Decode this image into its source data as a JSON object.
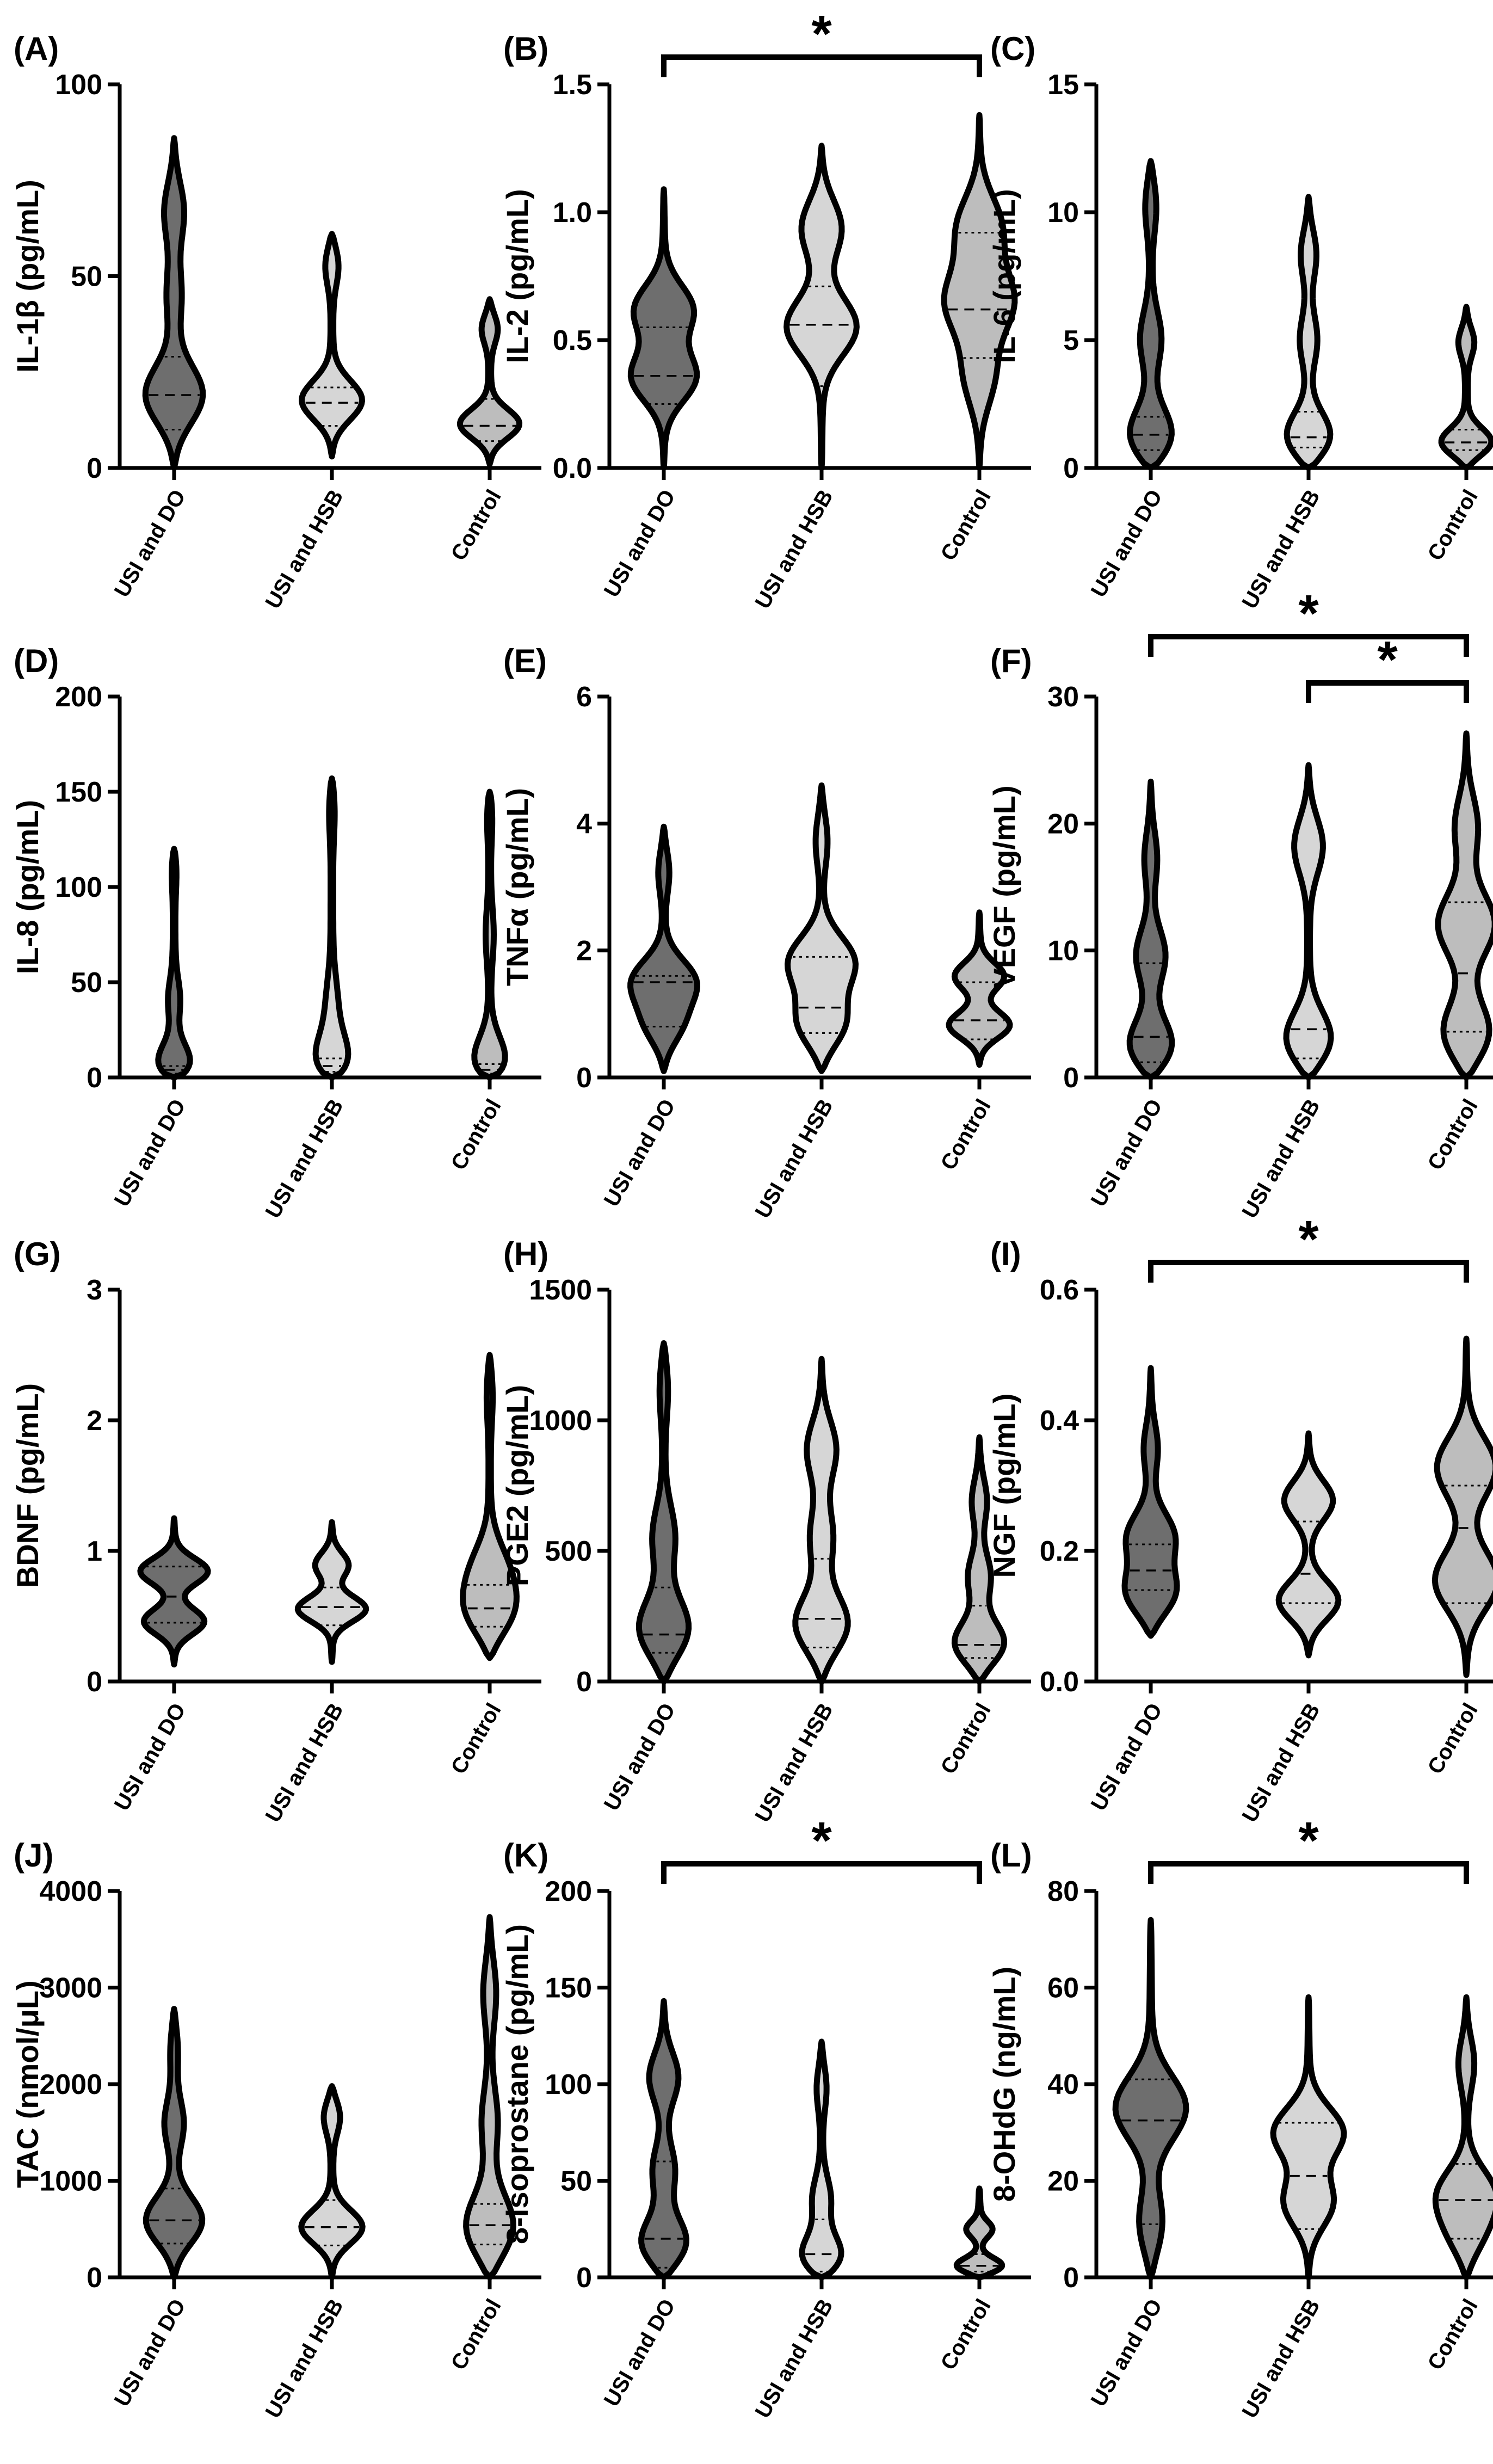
{
  "colors": {
    "USI and DO": "#6e6e6e",
    "USI and HSB": "#d6d6d6",
    "Control": "#bdbdbd"
  },
  "chart_data": [
    {
      "type": "violin",
      "panel": "(A)",
      "ylabel": "IL-1β (pg/mL)",
      "ylim": [
        0,
        100
      ],
      "yticks": [
        0,
        50,
        100
      ],
      "categories": [
        "USI and DO",
        "USI and HSB",
        "Control"
      ],
      "series": [
        {
          "name": "USI and DO",
          "min": 0,
          "max": 86,
          "q1": 10,
          "median": 19,
          "q3": 29,
          "modes": [
            [
              18,
              1.0
            ],
            [
              68,
              0.32
            ],
            [
              45,
              0.18
            ]
          ]
        },
        {
          "name": "USI and HSB",
          "min": 3,
          "max": 61,
          "q1": 11,
          "median": 17,
          "q3": 21,
          "modes": [
            [
              17,
              1.0
            ],
            [
              54,
              0.25
            ]
          ]
        },
        {
          "name": "Control",
          "min": 1,
          "max": 44,
          "q1": 7,
          "median": 11,
          "q3": 18,
          "modes": [
            [
              11,
              1.0
            ],
            [
              37,
              0.28
            ]
          ]
        }
      ],
      "significance": []
    },
    {
      "type": "violin",
      "panel": "(B)",
      "ylabel": "IL-2 (pg/mL)",
      "ylim": [
        0,
        1.5
      ],
      "yticks": [
        0.0,
        0.5,
        1.0,
        1.5
      ],
      "categories": [
        "USI and DO",
        "USI and HSB",
        "Control"
      ],
      "series": [
        {
          "name": "USI and DO",
          "min": 0,
          "max": 1.09,
          "q1": 0.25,
          "median": 0.36,
          "q3": 0.55,
          "modes": [
            [
              0.35,
              1.0
            ],
            [
              0.62,
              0.85
            ]
          ]
        },
        {
          "name": "USI and HSB",
          "min": 0,
          "max": 1.26,
          "q1": 0.32,
          "median": 0.56,
          "q3": 0.71,
          "modes": [
            [
              0.55,
              1.0
            ],
            [
              0.95,
              0.65
            ]
          ]
        },
        {
          "name": "Control",
          "min": 0,
          "max": 1.38,
          "q1": 0.43,
          "median": 0.62,
          "q3": 0.92,
          "modes": [
            [
              0.65,
              1.0
            ],
            [
              0.95,
              0.7
            ],
            [
              0.35,
              0.5
            ]
          ]
        }
      ],
      "significance": [
        {
          "from": "USI and DO",
          "to": "Control",
          "label": "*"
        }
      ]
    },
    {
      "type": "violin",
      "panel": "(C)",
      "ylabel": "IL-6 (pg/mL)",
      "ylim": [
        0,
        15
      ],
      "yticks": [
        0,
        5,
        10,
        15
      ],
      "categories": [
        "USI and DO",
        "USI and HSB",
        "Control"
      ],
      "series": [
        {
          "name": "USI and DO",
          "min": 0,
          "max": 12,
          "q1": 0.7,
          "median": 1.3,
          "q3": 2.0,
          "modes": [
            [
              1.0,
              1.0
            ],
            [
              5.0,
              0.28
            ],
            [
              10.5,
              0.2
            ]
          ]
        },
        {
          "name": "USI and HSB",
          "min": 0,
          "max": 10.6,
          "q1": 0.8,
          "median": 1.2,
          "q3": 2.2,
          "modes": [
            [
              1.0,
              1.0
            ],
            [
              5.0,
              0.22
            ],
            [
              8.5,
              0.25
            ]
          ]
        },
        {
          "name": "Control",
          "min": 0,
          "max": 6.3,
          "q1": 0.7,
          "median": 1.0,
          "q3": 1.5,
          "modes": [
            [
              0.9,
              1.0
            ],
            [
              5.0,
              0.25
            ]
          ]
        }
      ],
      "significance": []
    },
    {
      "type": "violin",
      "panel": "(D)",
      "ylabel": "IL-8 (pg/mL)",
      "ylim": [
        0,
        200
      ],
      "yticks": [
        0,
        50,
        100,
        150,
        200
      ],
      "categories": [
        "USI and DO",
        "USI and HSB",
        "Control"
      ],
      "series": [
        {
          "name": "USI and DO",
          "min": 0,
          "max": 120,
          "q1": 2,
          "median": 4,
          "q3": 6,
          "modes": [
            [
              3,
              1.0
            ],
            [
              40,
              0.15
            ],
            [
              112,
              0.08
            ]
          ]
        },
        {
          "name": "USI and HSB",
          "min": 0,
          "max": 157,
          "q1": 3,
          "median": 6,
          "q3": 10,
          "modes": [
            [
              4,
              1.0
            ],
            [
              38,
              0.15
            ],
            [
              145,
              0.1
            ]
          ]
        },
        {
          "name": "Control",
          "min": 0,
          "max": 150,
          "q1": 2,
          "median": 4,
          "q3": 7,
          "modes": [
            [
              3,
              1.0
            ],
            [
              75,
              0.08
            ],
            [
              142,
              0.1
            ]
          ]
        }
      ],
      "significance": []
    },
    {
      "type": "violin",
      "panel": "(E)",
      "ylabel": "TNFα (pg/mL)",
      "ylim": [
        0,
        6
      ],
      "yticks": [
        0,
        2,
        4,
        6
      ],
      "categories": [
        "USI and DO",
        "USI and HSB",
        "Control"
      ],
      "series": [
        {
          "name": "USI and DO",
          "min": 0.1,
          "max": 3.95,
          "q1": 0.8,
          "median": 1.5,
          "q3": 1.6,
          "modes": [
            [
              1.5,
              1.0
            ],
            [
              0.8,
              0.7
            ],
            [
              3.3,
              0.2
            ]
          ]
        },
        {
          "name": "USI and HSB",
          "min": 0.1,
          "max": 4.6,
          "q1": 0.7,
          "median": 1.1,
          "q3": 1.9,
          "modes": [
            [
              1.8,
              1.0
            ],
            [
              0.8,
              0.95
            ],
            [
              3.8,
              0.2
            ]
          ]
        },
        {
          "name": "Control",
          "min": 0.2,
          "max": 2.6,
          "q1": 0.6,
          "median": 0.9,
          "q3": 1.5,
          "modes": [
            [
              0.8,
              1.0
            ],
            [
              1.6,
              0.7
            ]
          ]
        }
      ],
      "significance": []
    },
    {
      "type": "violin",
      "panel": "(F)",
      "ylabel": "VEGF (pg/mL)",
      "ylim": [
        0,
        30
      ],
      "yticks": [
        0,
        10,
        20,
        30
      ],
      "categories": [
        "USI and DO",
        "USI and HSB",
        "Control"
      ],
      "series": [
        {
          "name": "USI and DO",
          "min": 0,
          "max": 23.3,
          "q1": 1.2,
          "median": 3.2,
          "q3": 9.0,
          "modes": [
            [
              2.0,
              1.0
            ],
            [
              9.5,
              0.4
            ],
            [
              17.5,
              0.18
            ]
          ]
        },
        {
          "name": "USI and HSB",
          "min": 0,
          "max": 24.6,
          "q1": 1.5,
          "median": 3.8,
          "q3": 8.7,
          "modes": [
            [
              2.5,
              1.0
            ],
            [
              18.5,
              0.45
            ]
          ]
        },
        {
          "name": "Control",
          "min": 0,
          "max": 27.1,
          "q1": 3.6,
          "median": 8.2,
          "q3": 13.8,
          "modes": [
            [
              3.0,
              1.0
            ],
            [
              12.0,
              0.8
            ],
            [
              20.0,
              0.35
            ]
          ]
        }
      ],
      "significance": [
        {
          "from": "USI and DO",
          "to": "Control",
          "label": "*"
        },
        {
          "from": "USI and HSB",
          "to": "Control",
          "label": "*"
        }
      ]
    },
    {
      "type": "violin",
      "panel": "(G)",
      "ylabel": "BDNF (pg/mL)",
      "ylim": [
        0,
        3
      ],
      "yticks": [
        0,
        1,
        2,
        3
      ],
      "categories": [
        "USI and DO",
        "USI and HSB",
        "Control"
      ],
      "series": [
        {
          "name": "USI and DO",
          "min": 0.13,
          "max": 1.25,
          "q1": 0.45,
          "median": 0.65,
          "q3": 0.88,
          "modes": [
            [
              0.85,
              1.0
            ],
            [
              0.45,
              0.95
            ]
          ]
        },
        {
          "name": "USI and HSB",
          "min": 0.15,
          "max": 1.22,
          "q1": 0.43,
          "median": 0.57,
          "q3": 0.72,
          "modes": [
            [
              0.55,
              1.0
            ],
            [
              0.9,
              0.5
            ]
          ]
        },
        {
          "name": "Control",
          "min": 0.18,
          "max": 2.5,
          "q1": 0.42,
          "median": 0.56,
          "q3": 0.74,
          "modes": [
            [
              0.5,
              1.0
            ],
            [
              0.85,
              0.55
            ],
            [
              2.25,
              0.12
            ]
          ]
        }
      ],
      "significance": []
    },
    {
      "type": "violin",
      "panel": "(H)",
      "ylabel": "PGE2 (pg/mL)",
      "ylim": [
        0,
        1500
      ],
      "yticks": [
        0,
        500,
        1000,
        1500
      ],
      "categories": [
        "USI and DO",
        "USI and HSB",
        "Control"
      ],
      "series": [
        {
          "name": "USI and DO",
          "min": 0,
          "max": 1295,
          "q1": 110,
          "median": 180,
          "q3": 360,
          "modes": [
            [
              180,
              1.0
            ],
            [
              550,
              0.3
            ],
            [
              1150,
              0.15
            ]
          ]
        },
        {
          "name": "USI and HSB",
          "min": 0,
          "max": 1235,
          "q1": 130,
          "median": 240,
          "q3": 470,
          "modes": [
            [
              200,
              1.0
            ],
            [
              900,
              0.45
            ],
            [
              550,
              0.3
            ]
          ]
        },
        {
          "name": "Control",
          "min": 0,
          "max": 935,
          "q1": 90,
          "median": 140,
          "q3": 290,
          "modes": [
            [
              130,
              1.0
            ],
            [
              400,
              0.3
            ],
            [
              700,
              0.22
            ]
          ]
        }
      ],
      "significance": []
    },
    {
      "type": "violin",
      "panel": "(I)",
      "ylabel": "NGF (pg/mL)",
      "ylim": [
        0,
        0.6
      ],
      "yticks": [
        0.0,
        0.2,
        0.4,
        0.6
      ],
      "categories": [
        "USI and DO",
        "USI and HSB",
        "Control"
      ],
      "series": [
        {
          "name": "USI and DO",
          "min": 0.07,
          "max": 0.48,
          "q1": 0.14,
          "median": 0.17,
          "q3": 0.21,
          "modes": [
            [
              0.13,
              1.0
            ],
            [
              0.22,
              0.7
            ],
            [
              0.36,
              0.2
            ]
          ]
        },
        {
          "name": "USI and HSB",
          "min": 0.04,
          "max": 0.38,
          "q1": 0.12,
          "median": 0.165,
          "q3": 0.245,
          "modes": [
            [
              0.12,
              1.0
            ],
            [
              0.28,
              0.75
            ]
          ]
        },
        {
          "name": "Control",
          "min": 0.01,
          "max": 0.525,
          "q1": 0.12,
          "median": 0.235,
          "q3": 0.3,
          "modes": [
            [
              0.15,
              1.0
            ],
            [
              0.33,
              0.85
            ]
          ]
        }
      ],
      "significance": [
        {
          "from": "USI and DO",
          "to": "Control",
          "label": "*"
        }
      ]
    },
    {
      "type": "violin",
      "panel": "(J)",
      "ylabel": "TAC (nmol/μL)",
      "ylim": [
        0,
        4000
      ],
      "yticks": [
        0,
        1000,
        2000,
        3000,
        4000
      ],
      "categories": [
        "USI and DO",
        "USI and HSB",
        "Control"
      ],
      "series": [
        {
          "name": "USI and DO",
          "min": 0,
          "max": 2780,
          "q1": 350,
          "median": 590,
          "q3": 920,
          "modes": [
            [
              550,
              1.0
            ],
            [
              1600,
              0.25
            ],
            [
              2400,
              0.12
            ]
          ]
        },
        {
          "name": "USI and HSB",
          "min": 0,
          "max": 1980,
          "q1": 330,
          "median": 520,
          "q3": 800,
          "modes": [
            [
              500,
              1.0
            ],
            [
              1700,
              0.3
            ]
          ]
        },
        {
          "name": "Control",
          "min": 0,
          "max": 3730,
          "q1": 340,
          "median": 540,
          "q3": 760,
          "modes": [
            [
              450,
              1.0
            ],
            [
              1600,
              0.2
            ],
            [
              3000,
              0.2
            ]
          ]
        }
      ],
      "significance": []
    },
    {
      "type": "violin",
      "panel": "(K)",
      "ylabel": "8-isoprostane (pg/mL)",
      "ylim": [
        0,
        200
      ],
      "yticks": [
        0,
        50,
        100,
        150,
        200
      ],
      "categories": [
        "USI and DO",
        "USI and HSB",
        "Control"
      ],
      "series": [
        {
          "name": "USI and DO",
          "min": 0,
          "max": 143,
          "q1": 5,
          "median": 20,
          "q3": 60,
          "modes": [
            [
              15,
              1.0
            ],
            [
              105,
              0.45
            ],
            [
              55,
              0.3
            ]
          ]
        },
        {
          "name": "USI and HSB",
          "min": 0,
          "max": 122,
          "q1": 3,
          "median": 12,
          "q3": 30,
          "modes": [
            [
              8,
              1.0
            ],
            [
              40,
              0.25
            ],
            [
              100,
              0.15
            ]
          ]
        },
        {
          "name": "Control",
          "min": 0,
          "max": 46,
          "q1": 3,
          "median": 6,
          "q3": 12,
          "modes": [
            [
              5,
              1.0
            ],
            [
              25,
              0.35
            ]
          ]
        }
      ],
      "significance": [
        {
          "from": "USI and DO",
          "to": "Control",
          "label": "*"
        }
      ]
    },
    {
      "type": "violin",
      "panel": "(L)",
      "ylabel": "8-OHdG (ng/mL)",
      "ylim": [
        0,
        80
      ],
      "yticks": [
        0,
        20,
        40,
        60,
        80
      ],
      "categories": [
        "USI and DO",
        "USI and HSB",
        "Control"
      ],
      "series": [
        {
          "name": "USI and DO",
          "min": 0,
          "max": 74,
          "q1": 11,
          "median": 32.5,
          "q3": 41,
          "modes": [
            [
              35,
              1.0
            ],
            [
              10,
              0.45
            ]
          ]
        },
        {
          "name": "USI and HSB",
          "min": 0,
          "max": 58,
          "q1": 10,
          "median": 21,
          "q3": 32,
          "modes": [
            [
              30,
              1.0
            ],
            [
              15,
              0.8
            ]
          ]
        },
        {
          "name": "Control",
          "min": 0,
          "max": 58,
          "q1": 8,
          "median": 16,
          "q3": 23.5,
          "modes": [
            [
              17,
              1.0
            ],
            [
              8,
              0.7
            ],
            [
              45,
              0.3
            ]
          ]
        }
      ],
      "significance": [
        {
          "from": "USI and DO",
          "to": "Control",
          "label": "*"
        }
      ]
    }
  ]
}
